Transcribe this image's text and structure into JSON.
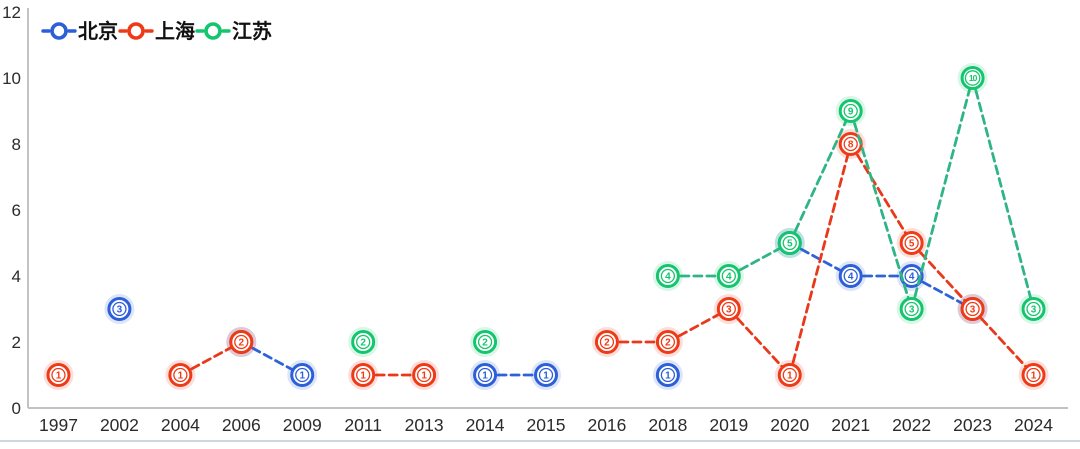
{
  "page": {
    "background": "#ffffff",
    "bottom_border_color": "#cdd7e2"
  },
  "chart_data": {
    "type": "line",
    "title": "",
    "line_style": "dashed",
    "marker_style": "circled-number",
    "grid": false,
    "legend": {
      "position": "top-left",
      "entries": [
        "北京",
        "上海",
        "江苏"
      ]
    },
    "categories": [
      "1997",
      "2002",
      "2004",
      "2006",
      "2009",
      "2011",
      "2013",
      "2014",
      "2015",
      "2016",
      "2018",
      "2019",
      "2020",
      "2021",
      "2022",
      "2023",
      "2024"
    ],
    "series": [
      {
        "name": "北京",
        "key": "beijing",
        "color": "#2c5fd8",
        "line_color": "#2e62d9",
        "values": [
          null,
          3,
          null,
          2,
          1,
          null,
          null,
          1,
          1,
          null,
          1,
          null,
          5,
          4,
          4,
          3,
          null
        ]
      },
      {
        "name": "上海",
        "key": "shanghai",
        "color": "#ee3b17",
        "line_color": "#e8391b",
        "values": [
          1,
          null,
          1,
          2,
          null,
          1,
          1,
          null,
          null,
          2,
          2,
          3,
          1,
          8,
          5,
          3,
          1
        ]
      },
      {
        "name": "江苏",
        "key": "jiangsu",
        "color": "#14c56d",
        "line_color": "#2fb585",
        "values": [
          null,
          null,
          null,
          null,
          null,
          2,
          null,
          2,
          null,
          null,
          4,
          4,
          5,
          9,
          3,
          10,
          3
        ]
      }
    ],
    "xlabel": "",
    "ylabel": "",
    "ylim": [
      0,
      12
    ],
    "y_ticks": [
      0,
      2,
      4,
      6,
      8,
      10,
      12
    ],
    "axis_color": "#c2c2c2",
    "tick_label_color": "#2b2b2b"
  }
}
